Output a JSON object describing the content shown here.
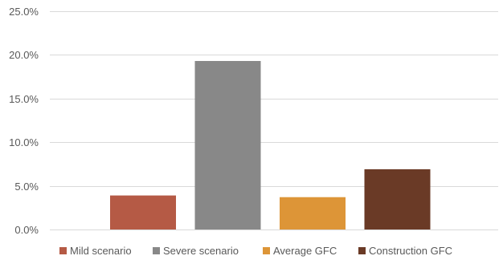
{
  "chart_data": {
    "type": "bar",
    "title": "",
    "xlabel": "",
    "ylabel": "",
    "ylim": [
      0,
      0.25
    ],
    "y_tick_step": 0.05,
    "y_format": "percent_1dp",
    "grid": "horizontal",
    "legend_position": "bottom",
    "categories": [
      "Mild scenario",
      "Severe scenario",
      "Average GFC",
      "Construction GFC"
    ],
    "y_ticks": [
      "0.0%",
      "5.0%",
      "10.0%",
      "15.0%",
      "20.0%",
      "25.0%"
    ],
    "series": [
      {
        "name": "Mild scenario",
        "value": 0.039,
        "color": "#b55a45"
      },
      {
        "name": "Severe scenario",
        "value": 0.193,
        "color": "#888888"
      },
      {
        "name": "Average GFC",
        "value": 0.037,
        "color": "#dd9537"
      },
      {
        "name": "Construction GFC",
        "value": 0.069,
        "color": "#6a3a26"
      }
    ]
  }
}
